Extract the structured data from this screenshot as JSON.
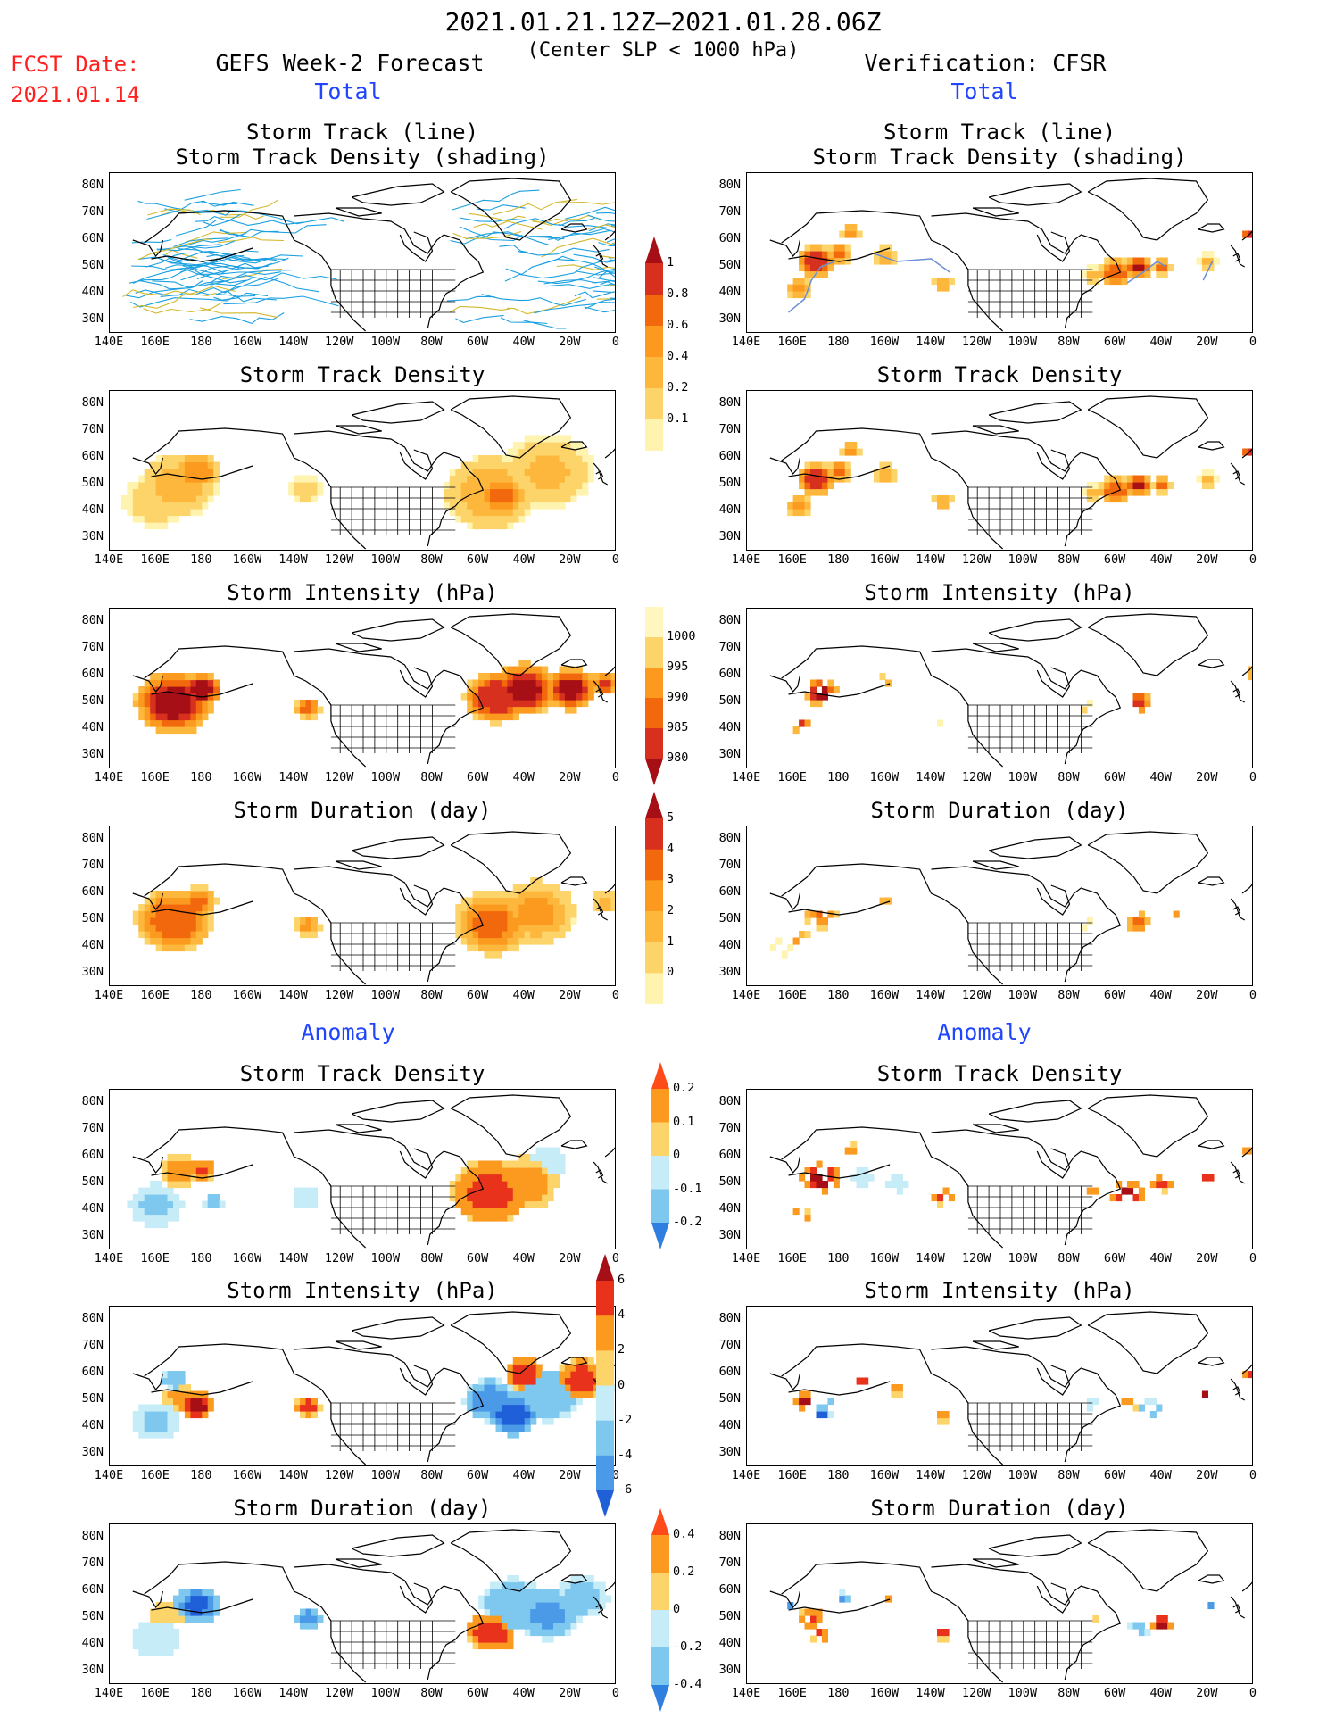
{
  "header": {
    "date_range": "2021.01.21.12Z–2021.01.28.06Z",
    "criterion": "(Center SLP < 1000 hPa)",
    "fcst_label": "FCST Date:",
    "fcst_date": "2021.01.14",
    "left_title": "GEFS Week-2 Forecast",
    "right_title": "Verification: CFSR"
  },
  "sections": {
    "total": "Total",
    "anomaly": "Anomaly"
  },
  "panel_titles": {
    "track_line_1": "Storm Track (line)",
    "track_line_2": "Storm Track Density (shading)",
    "density": "Storm Track Density",
    "intensity": "Storm Intensity (hPa)",
    "duration": "Storm Duration (day)"
  },
  "axes": {
    "lat_labels": [
      "80N",
      "70N",
      "60N",
      "50N",
      "40N",
      "30N"
    ],
    "lon_labels": [
      "140E",
      "160E",
      "180",
      "160W",
      "140W",
      "120W",
      "100W",
      "80W",
      "60W",
      "40W",
      "20W",
      "0"
    ]
  },
  "colorbars": {
    "density_total": {
      "labels": [
        "1",
        "0.8",
        "0.6",
        "0.4",
        "0.2",
        "0.1"
      ],
      "colors": [
        "#a50f15",
        "#d7301f",
        "#f2680c",
        "#fb9a1f",
        "#fdb73c",
        "#fdd46a",
        "#fff3b0"
      ]
    },
    "intensity_total": {
      "labels": [
        "1000",
        "995",
        "990",
        "985",
        "980"
      ],
      "colors": [
        "#fff6c0",
        "#fdd46a",
        "#fb9a1f",
        "#f2680c",
        "#d7301f",
        "#a50f15"
      ]
    },
    "duration_total": {
      "labels": [
        "5",
        "4",
        "3",
        "2",
        "1",
        "0"
      ],
      "colors": [
        "#a50f15",
        "#d7301f",
        "#f2680c",
        "#fb9a1f",
        "#fdb73c",
        "#fdd46a",
        "#fff3b0"
      ]
    },
    "density_anom": {
      "labels": [
        "0.2",
        "0.1",
        "0",
        "-0.1",
        "-0.2"
      ],
      "colors": [
        "#ff4a1a",
        "#fb9a1f",
        "#fdd46a",
        "#c5ecf7",
        "#7ec8f0",
        "#2f7fe0"
      ]
    },
    "intensity_anom": {
      "labels": [
        "6",
        "4",
        "2",
        "0",
        "-2",
        "-4",
        "-6"
      ],
      "colors": [
        "#a50f15",
        "#e8321b",
        "#fb9a1f",
        "#fdd46a",
        "#c5ecf7",
        "#7ec8f0",
        "#4a9ae8",
        "#1f5fd8"
      ]
    },
    "duration_anom": {
      "labels": [
        "0.4",
        "0.2",
        "0",
        "-0.2",
        "-0.4"
      ],
      "colors": [
        "#ff4a1a",
        "#fb9a1f",
        "#fdd46a",
        "#c5ecf7",
        "#7ec8f0",
        "#2f7fe0"
      ]
    }
  }
}
